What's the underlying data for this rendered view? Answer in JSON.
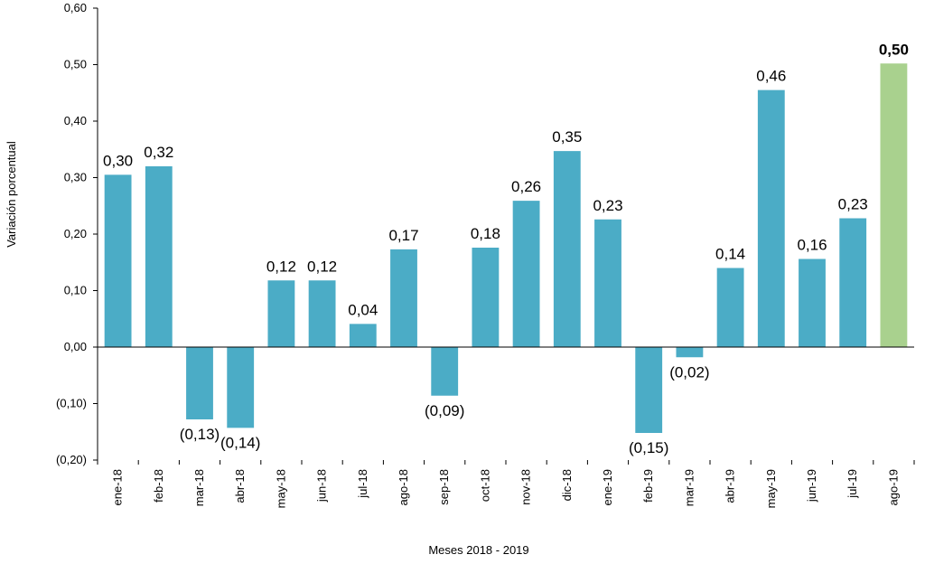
{
  "chart_data": {
    "type": "bar",
    "title": "",
    "xlabel": "Meses 2018  - 2019",
    "ylabel": "Variación porcentual",
    "ylim": [
      -0.2,
      0.6
    ],
    "yticks": [
      0.6,
      0.5,
      0.4,
      0.3,
      0.2,
      0.1,
      0.0,
      -0.1,
      -0.2
    ],
    "ytick_labels": [
      "0,60",
      "0,50",
      "0,40",
      "0,30",
      "0,20",
      "0,10",
      "0,00",
      "(0,10)",
      "(0,20)"
    ],
    "grid": false,
    "legend": "none",
    "categories": [
      "ene-18",
      "feb-18",
      "mar-18",
      "abr-18",
      "may-18",
      "jun-18",
      "jul-18",
      "ago-18",
      "sep-18",
      "oct-18",
      "nov-18",
      "dic-18",
      "ene-19",
      "feb-19",
      "mar-19",
      "abr-19",
      "may-19",
      "jun-19",
      "jul-19",
      "ago-19"
    ],
    "values": [
      0.305,
      0.32,
      -0.128,
      -0.143,
      0.118,
      0.118,
      0.041,
      0.173,
      -0.086,
      0.176,
      0.259,
      0.347,
      0.226,
      -0.152,
      -0.018,
      0.14,
      0.455,
      0.156,
      0.228,
      0.502
    ],
    "value_labels": [
      "0,30",
      "0,32",
      "(0,13)",
      "(0,14)",
      "0,12",
      "0,12",
      "0,04",
      "0,17",
      "(0,09)",
      "0,18",
      "0,26",
      "0,35",
      "0,23",
      "(0,15)",
      "(0,02)",
      "0,14",
      "0,46",
      "0,16",
      "0,23",
      "0,50"
    ],
    "highlight_index": 19,
    "colors": {
      "bar": "#4bacc6",
      "highlight": "#a9d18e",
      "axis": "#000000"
    }
  }
}
